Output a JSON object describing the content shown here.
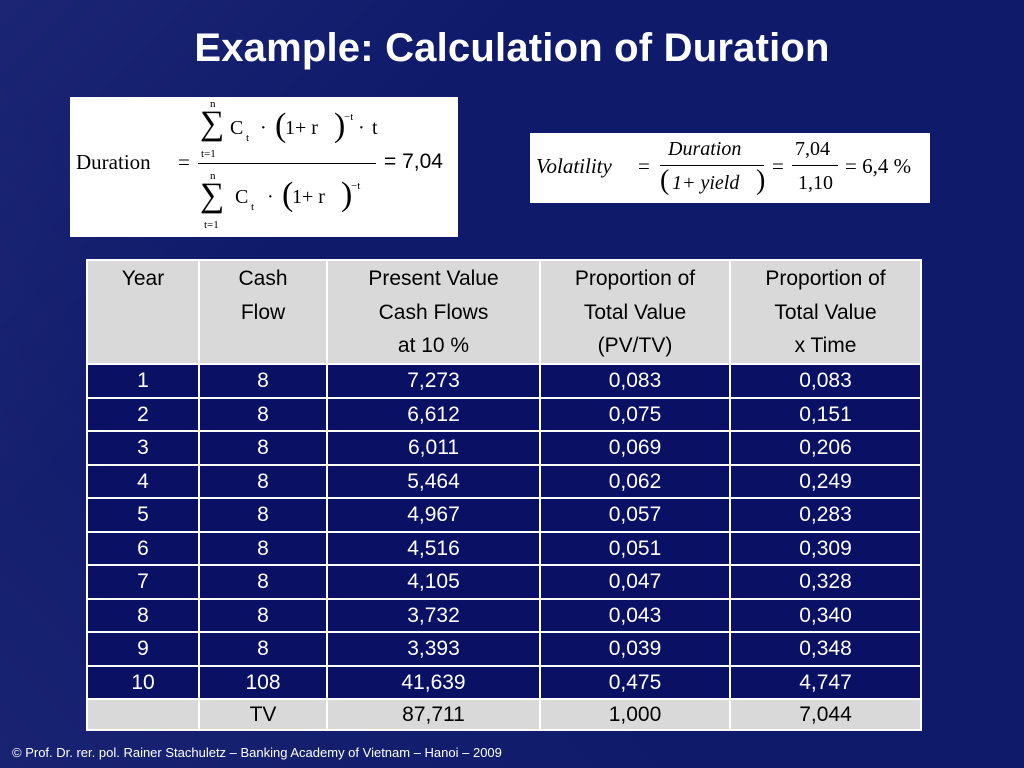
{
  "title": "Example: Calculation of Duration",
  "duration_formula": {
    "lhs": "Duration",
    "eq": "=",
    "numerator": {
      "sum_top": "n",
      "sum_bottom": "t=1",
      "C": "C",
      "C_sub": "t",
      "dot1": "·",
      "base": "1+ r",
      "exp": "−t",
      "dot2": "·",
      "t": "t"
    },
    "denominator": {
      "sum_top": "n",
      "sum_bottom": "t=1",
      "C": "C",
      "C_sub": "t",
      "dot1": "·",
      "base": "1+ r",
      "exp": "−t"
    },
    "result": "= 7,04"
  },
  "volatility_formula": {
    "lhs": "Volatility",
    "eq1": "=",
    "num1": "Duration",
    "den1": "1+ yield",
    "eq2": "=",
    "num2": "7,04",
    "den2": "1,10",
    "result": "= 6,4 %"
  },
  "table": {
    "headers": [
      [
        "Year"
      ],
      [
        "Cash",
        "Flow"
      ],
      [
        "Present Value",
        "Cash Flows",
        "at 10 %"
      ],
      [
        "Proportion of",
        "Total Value",
        "(PV/TV)"
      ],
      [
        "Proportion of",
        "Total Value",
        "x Time"
      ]
    ],
    "rows": [
      [
        "1",
        "8",
        "7,273",
        "0,083",
        "0,083"
      ],
      [
        "2",
        "8",
        "6,612",
        "0,075",
        "0,151"
      ],
      [
        "3",
        "8",
        "6,011",
        "0,069",
        "0,206"
      ],
      [
        "4",
        "8",
        "5,464",
        "0,062",
        "0,249"
      ],
      [
        "5",
        "8",
        "4,967",
        "0,057",
        "0,283"
      ],
      [
        "6",
        "8",
        "4,516",
        "0,051",
        "0,309"
      ],
      [
        "7",
        "8",
        "4,105",
        "0,047",
        "0,328"
      ],
      [
        "8",
        "8",
        "3,732",
        "0,043",
        "0,340"
      ],
      [
        "9",
        "8",
        "3,393",
        "0,039",
        "0,348"
      ],
      [
        "10",
        "108",
        "41,639",
        "0,475",
        "4,747"
      ]
    ],
    "total": [
      "",
      "TV",
      "87,711",
      "1,000",
      "7,044"
    ]
  },
  "footer": "©   Prof. Dr. rer. pol. Rainer Stachuletz – Banking Academy of Vietnam – Hanoi –  2009"
}
